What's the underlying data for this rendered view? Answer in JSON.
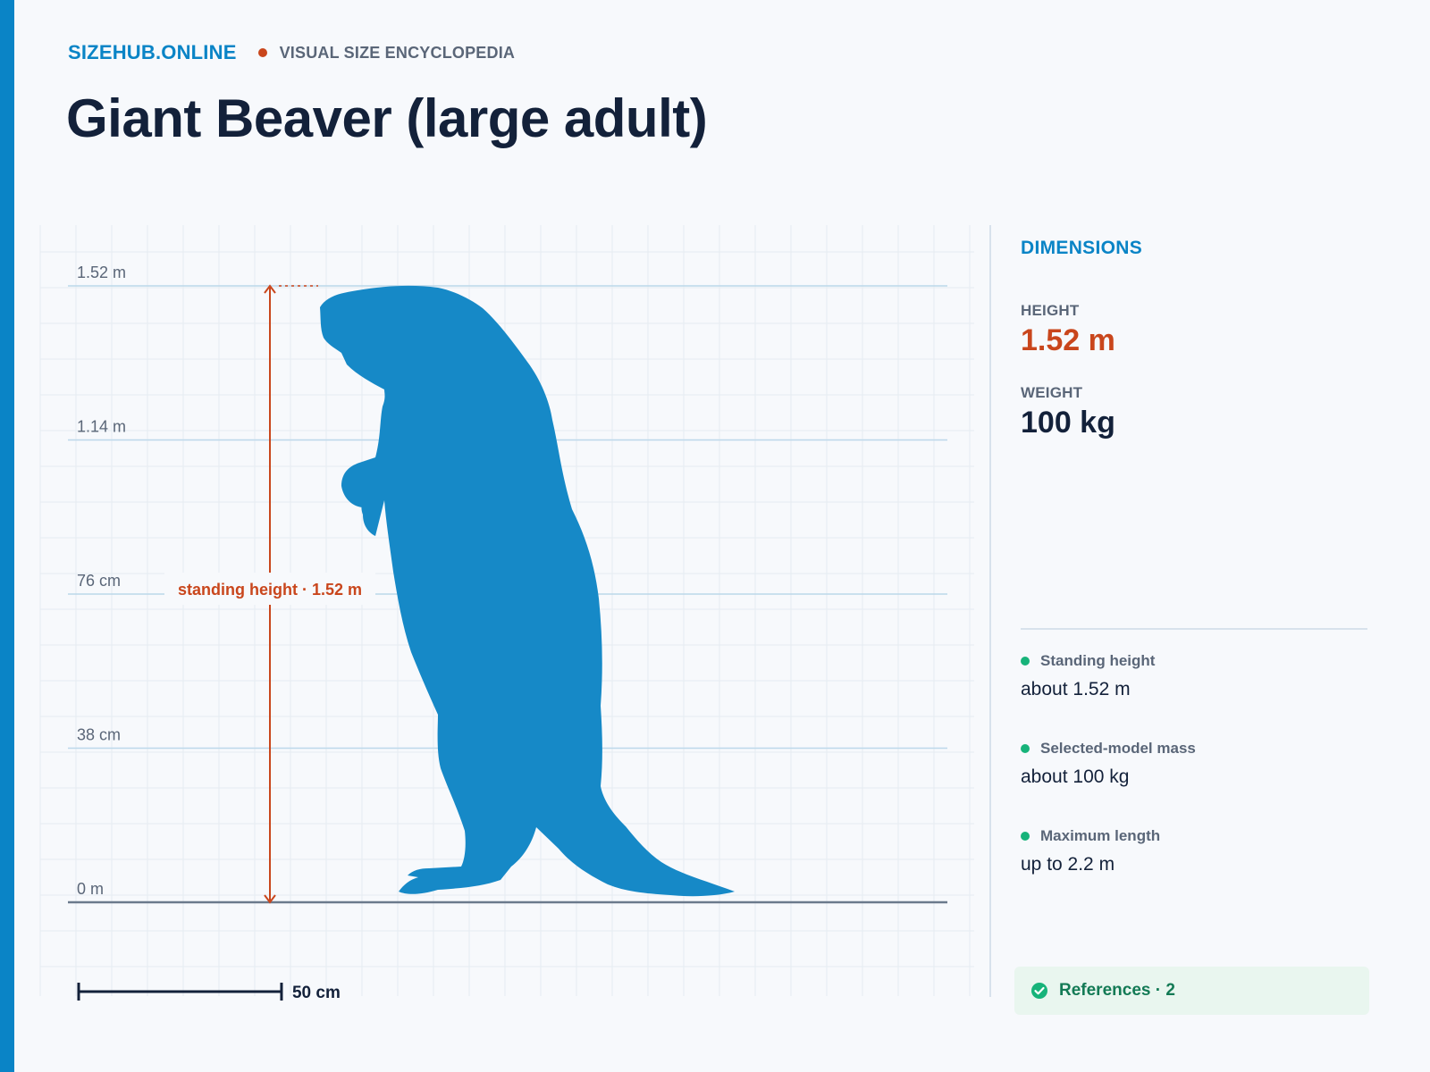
{
  "header": {
    "brand": "SIZEHUB.ONLINE",
    "tagline": "VISUAL SIZE ENCYCLOPEDIA"
  },
  "title": "Giant Beaver (large adult)",
  "chart_data": {
    "type": "size-comparison",
    "subject": "Giant Beaver (large adult)",
    "height_m": 1.52,
    "ticks": [
      {
        "value_m": 0,
        "label": "0 m"
      },
      {
        "value_m": 0.38,
        "label": "38 cm"
      },
      {
        "value_m": 0.76,
        "label": "76 cm"
      },
      {
        "value_m": 1.14,
        "label": "1.14 m"
      },
      {
        "value_m": 1.52,
        "label": "1.52 m"
      }
    ],
    "measure_label": "standing height · 1.52 m",
    "scale_bar": {
      "length_m": 0.5,
      "label": "50 cm"
    }
  },
  "dimensions": {
    "title": "DIMENSIONS",
    "height_label": "HEIGHT",
    "height_value": "1.52 m",
    "weight_label": "WEIGHT",
    "weight_value": "100 kg"
  },
  "facts": [
    {
      "label": "Standing height",
      "value": "about 1.52 m"
    },
    {
      "label": "Selected-model mass",
      "value": "about 100 kg"
    },
    {
      "label": "Maximum length",
      "value": "up to 2.2 m"
    }
  ],
  "references": {
    "label": "References · 2"
  },
  "colors": {
    "accent": "#0a84c6",
    "measure": "#c9461c",
    "silhouette": "#1689c7",
    "fact_dot": "#17b37a"
  },
  "icons": {
    "references": "check-circle-icon"
  }
}
